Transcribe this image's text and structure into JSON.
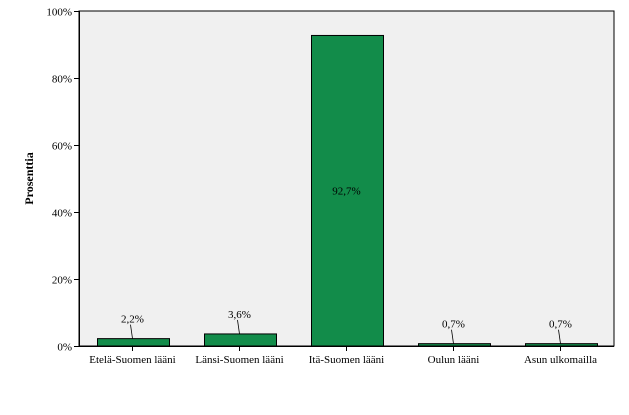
{
  "chart_data": {
    "type": "bar",
    "title": "",
    "xlabel": "",
    "ylabel": "Prosenttia",
    "ylim": [
      0,
      100
    ],
    "yticks": [
      0,
      20,
      40,
      60,
      80,
      100
    ],
    "ytick_labels": [
      "0%",
      "20%",
      "40%",
      "60%",
      "80%",
      "100%"
    ],
    "categories": [
      "Etelä-Suomen lääni",
      "Länsi-Suomen lääni",
      "Itä-Suomen lääni",
      "Oulun lääni",
      "Asun ulkomailla"
    ],
    "values": [
      2.2,
      3.6,
      92.7,
      0.7,
      0.7
    ],
    "value_labels": [
      "2,2%",
      "3,6%",
      "92,7%",
      "0,7%",
      "0,7%"
    ],
    "colors": {
      "bar_fill": "#128c4a",
      "bar_stroke": "#000000",
      "plot_background": "#f0f0f0",
      "page_background": "#ffffff"
    }
  }
}
